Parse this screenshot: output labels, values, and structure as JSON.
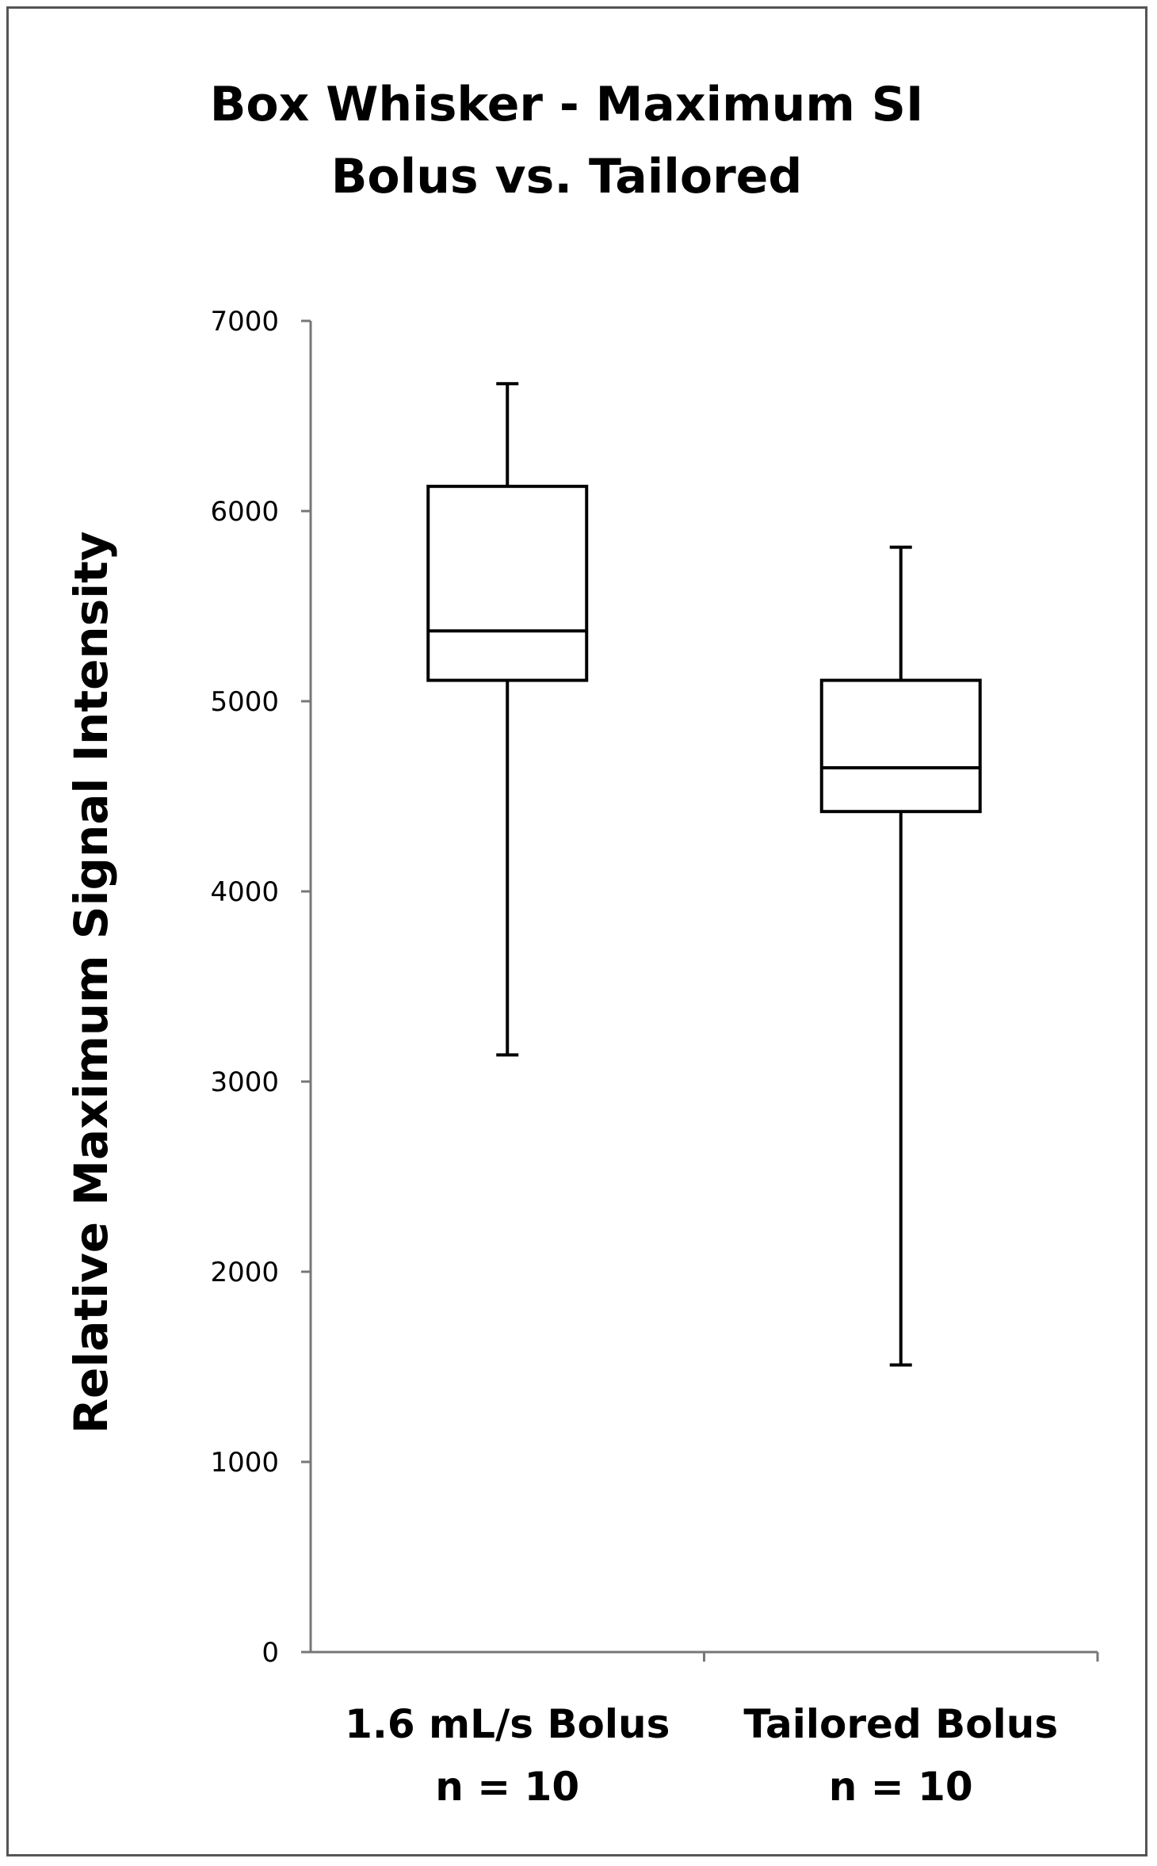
{
  "chart_data": {
    "type": "box",
    "title": [
      "Box Whisker - Maximum SI",
      "Bolus vs. Tailored"
    ],
    "ylabel": "Relative Maximum Signal Intensity",
    "xlabel": "",
    "ylim": [
      0,
      7000
    ],
    "yticks": [
      0,
      1000,
      2000,
      3000,
      4000,
      5000,
      6000,
      7000
    ],
    "grid": false,
    "categories": [
      {
        "label": "1.6 mL/s Bolus",
        "sublabel": "n = 10",
        "min": 3140,
        "q1": 5110,
        "median": 5370,
        "q3": 6130,
        "max": 6670
      },
      {
        "label": "Tailored Bolus",
        "sublabel": "n = 10",
        "min": 1510,
        "q1": 4420,
        "median": 4650,
        "q3": 5110,
        "max": 5810
      }
    ]
  }
}
